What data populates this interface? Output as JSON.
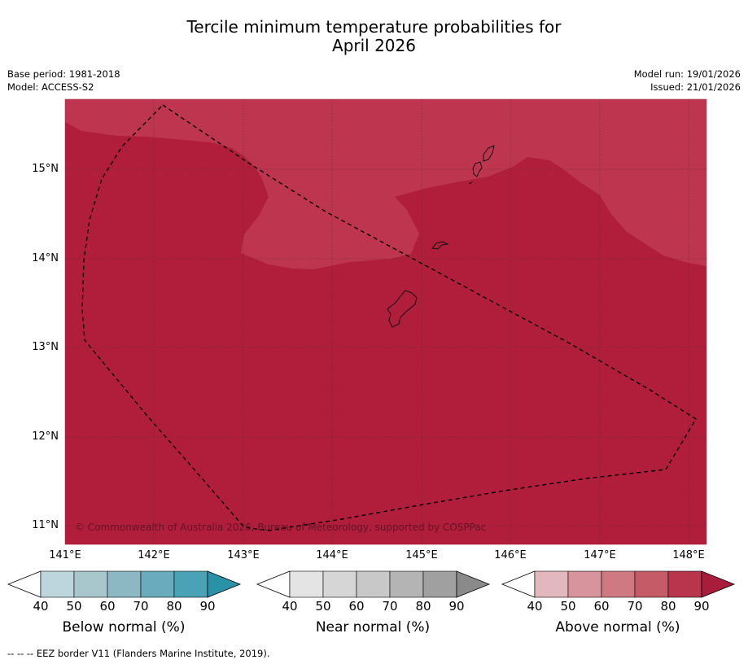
{
  "title_line1": "Tercile minimum temperature probabilities for",
  "title_line2": "April 2026",
  "meta_left": {
    "base_period": "Base period: 1981-2018",
    "model": "Model: ACCESS-S2"
  },
  "meta_right": {
    "model_run": "Model run: 19/01/2026",
    "issued": "Issued: 21/01/2026"
  },
  "map": {
    "lat_labels": [
      "15°N",
      "14°N",
      "13°N",
      "12°N",
      "11°N"
    ],
    "lon_labels": [
      "141°E",
      "142°E",
      "143°E",
      "144°E",
      "145°E",
      "146°E",
      "147°E",
      "148°E"
    ],
    "copyright": "© Commonwealth of Australia 2026, Bureau of Meteorology, supported by COSPPac",
    "colors": {
      "above_80_90": "#b01e3c",
      "above_70_80": "#bd354e",
      "coast": "#111111",
      "eez": "#000000"
    }
  },
  "colorbars": [
    {
      "title": "Below normal (%)",
      "ticks": [
        "40",
        "50",
        "60",
        "70",
        "80",
        "90"
      ],
      "colors": [
        "#ffffff",
        "#bdd6dd",
        "#a8c7cd",
        "#8cb8c4",
        "#6aacbd",
        "#4aa3b5",
        "#2a92a6"
      ]
    },
    {
      "title": "Near normal (%)",
      "ticks": [
        "40",
        "50",
        "60",
        "70",
        "80",
        "90"
      ],
      "colors": [
        "#ffffff",
        "#e4e4e4",
        "#d6d6d6",
        "#c8c8c8",
        "#b4b4b4",
        "#a0a0a0",
        "#8a8a8a"
      ]
    },
    {
      "title": "Above normal (%)",
      "ticks": [
        "40",
        "50",
        "60",
        "70",
        "80",
        "90"
      ],
      "colors": [
        "#ffffff",
        "#e3b7be",
        "#d7949d",
        "#cf7a82",
        "#c65b68",
        "#b8354c",
        "#a81c3c"
      ]
    }
  ],
  "footnote": "--  --  -- EEZ border V11 (Flanders Marine Institute, 2019)."
}
